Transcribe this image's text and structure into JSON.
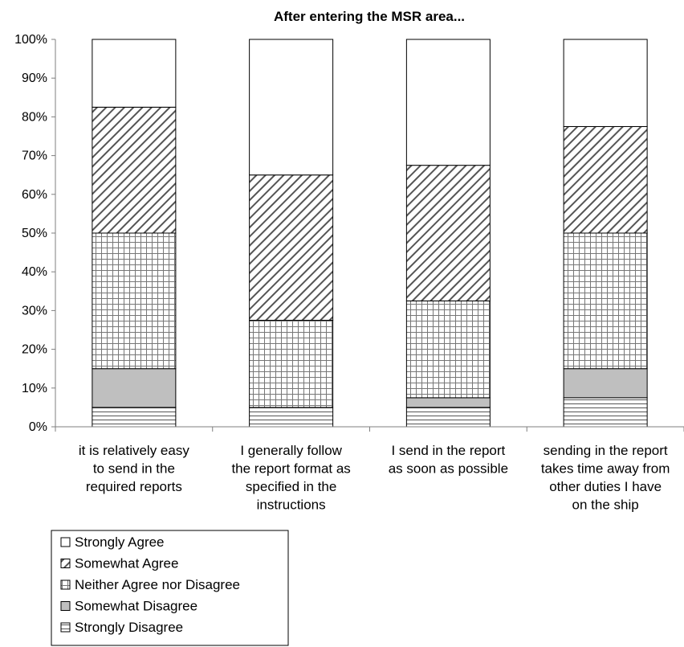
{
  "chart_data": {
    "type": "bar",
    "stacked": true,
    "title": "After entering the MSR area...",
    "xlabel": "",
    "ylabel": "",
    "ylim": [
      0,
      100
    ],
    "y_ticks": [
      "0%",
      "10%",
      "20%",
      "30%",
      "40%",
      "50%",
      "60%",
      "70%",
      "80%",
      "90%",
      "100%"
    ],
    "categories": [
      [
        "it is relatively easy",
        "to send in the",
        "required reports"
      ],
      [
        "I generally follow",
        "the report format as",
        "specified in the",
        "instructions"
      ],
      [
        "I send in the report",
        "as soon as possible"
      ],
      [
        "sending in the report",
        "takes time away from",
        "other duties I have",
        "on the ship"
      ]
    ],
    "series": [
      {
        "name": "Strongly Disagree",
        "pattern": "horizontal-lines",
        "values": [
          5,
          5,
          5,
          7.5
        ]
      },
      {
        "name": "Somewhat Disagree",
        "pattern": "gray-fill",
        "values": [
          10,
          0,
          2.5,
          7.5
        ]
      },
      {
        "name": "Neither Agree nor Disagree",
        "pattern": "grid",
        "values": [
          35,
          22.5,
          25,
          35
        ]
      },
      {
        "name": "Somewhat Agree",
        "pattern": "diagonal-lines",
        "values": [
          32.5,
          37.5,
          35,
          27.5
        ]
      },
      {
        "name": "Strongly Agree",
        "pattern": "white",
        "values": [
          17.5,
          35,
          32.5,
          22.5
        ]
      }
    ],
    "legend_order": [
      "Strongly Agree",
      "Somewhat Agree",
      "Neither Agree nor Disagree",
      "Somewhat Disagree",
      "Strongly Disagree"
    ],
    "legend_position": "bottom-left",
    "grid": false,
    "colors": {
      "axis": "#7f7f7f",
      "bar_outline": "#000000",
      "gray_fill": "#bfbfbf",
      "pattern_line": "#555555"
    }
  }
}
